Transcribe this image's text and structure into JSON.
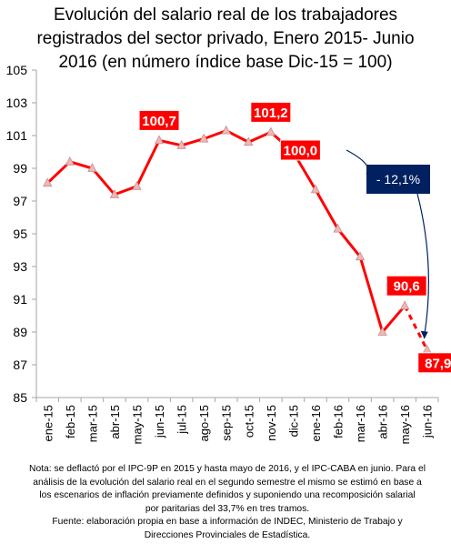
{
  "title": {
    "line1": "Evolución del salario real de los trabajadores",
    "line2": "registrados del sector privado, Enero 2015- Junio",
    "line3": "2016 (en número índice base Dic-15 = 100)"
  },
  "chart_data": {
    "type": "line",
    "title": "Evolución del salario real de los trabajadores registrados del sector privado, Enero 2015- Junio 2016 (en número índice base Dic-15 = 100)",
    "xlabel": "",
    "ylabel": "",
    "ylim": [
      85,
      105
    ],
    "yticks": [
      85,
      87,
      89,
      91,
      93,
      95,
      97,
      99,
      101,
      103,
      105
    ],
    "grid": false,
    "categories": [
      "ene-15",
      "feb-15",
      "mar-15",
      "abr-15",
      "may-15",
      "jun-15",
      "jul-15",
      "ago-15",
      "sep-15",
      "oct-15",
      "nov-15",
      "dic-15",
      "ene-16",
      "feb-16",
      "mar-16",
      "abr-16",
      "may-16",
      "jun-16"
    ],
    "series": [
      {
        "values": [
          98.1,
          99.4,
          99.0,
          97.4,
          97.9,
          100.7,
          100.4,
          100.8,
          101.3,
          100.6,
          101.2,
          100.0,
          97.7,
          95.3,
          93.6,
          89.0,
          90.6,
          87.9
        ]
      }
    ],
    "projected_from_index": 16,
    "colors": {
      "line": "#ff0000",
      "marker": "#f4b5b5",
      "label_bg": "#ff0000",
      "callout_bg": "#002060",
      "arrow": "#002060"
    },
    "data_labels": [
      {
        "index": 5,
        "text": "100,7"
      },
      {
        "index": 10,
        "text": "101,2"
      },
      {
        "index": 11,
        "text": "100,0"
      },
      {
        "index": 16,
        "text": "90,6"
      },
      {
        "index": 17,
        "text": "87,9"
      }
    ],
    "annotation": {
      "text": "- 12,1%",
      "from_index": 11,
      "to_index": 17
    }
  },
  "notes": {
    "line1": "Nota: se deflactó por el IPC-9P en 2015 y hasta mayo de 2016, y el IPC-CABA en junio. Para el",
    "line2": "análisis de la evolución del salario real en el segundo semestre el mismo se estimó en base a",
    "line3": "los escenarios de inflación previamente definidos y suponiendo una recomposición salarial",
    "line4": "por paritarias del 33,7% en tres tramos.",
    "line5": "Fuente: elaboración propia en base a información de INDEC, Ministerio de Trabajo y",
    "line6": "Direcciones Provinciales de Estadística."
  }
}
